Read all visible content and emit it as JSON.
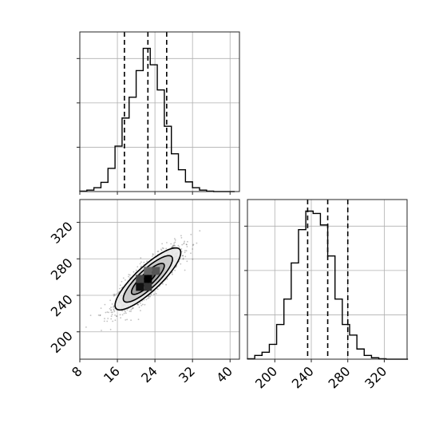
{
  "chart_data": [
    {
      "type": "histogram",
      "panel": "top-left",
      "variable_index": 0,
      "x_range": [
        8,
        42
      ],
      "x_ticks": [
        8,
        16,
        24,
        32,
        40
      ],
      "tick_labels_shown": false,
      "bin_edges": [
        8,
        9.5,
        11,
        12.5,
        14,
        15.5,
        17,
        18.5,
        20,
        21.5,
        23,
        24.5,
        26,
        27.5,
        29,
        30.5,
        32,
        33.5,
        35,
        36.5,
        38,
        39.5,
        41
      ],
      "counts": [
        1,
        3,
        8,
        19,
        48,
        94,
        152,
        195,
        250,
        296,
        262,
        210,
        135,
        78,
        45,
        20,
        8,
        3,
        1,
        0,
        0,
        0
      ],
      "y_range": [
        0,
        330
      ],
      "quantiles": [
        17.5,
        22.5,
        26.5
      ],
      "grid": true
    },
    {
      "type": "histogram",
      "panel": "bottom-right",
      "variable_index": 1,
      "x_range": [
        170,
        345
      ],
      "x_ticks": [
        200,
        240,
        280,
        320
      ],
      "tick_labels": [
        "200",
        "240",
        "280",
        "320"
      ],
      "bin_edges": [
        170,
        178,
        186,
        194,
        202,
        210,
        218,
        226,
        234,
        242,
        250,
        258,
        266,
        274,
        282,
        290,
        298,
        306,
        314,
        322,
        330,
        338,
        346
      ],
      "counts": [
        1,
        8,
        15,
        32,
        75,
        130,
        208,
        280,
        320,
        315,
        290,
        223,
        130,
        75,
        52,
        22,
        8,
        3,
        1,
        0,
        0,
        0
      ],
      "y_range": [
        0,
        345
      ],
      "quantiles": [
        236,
        258,
        280
      ],
      "grid": true
    },
    {
      "type": "scatter-density",
      "panel": "bottom-left",
      "x_range": [
        8,
        42
      ],
      "y_range": [
        170,
        345
      ],
      "x_ticks": [
        8,
        16,
        24,
        32,
        40
      ],
      "x_tick_labels": [
        "8",
        "16",
        "24",
        "32",
        "40"
      ],
      "y_ticks": [
        200,
        240,
        280,
        320
      ],
      "y_tick_labels": [
        "200",
        "240",
        "280",
        "320"
      ],
      "center": [
        22.5,
        258
      ],
      "std": [
        3.5,
        17
      ],
      "correlation": 0.85,
      "sample_points": 1400,
      "contour_levels_sigma": [
        0.5,
        1.0,
        1.5,
        2.0
      ],
      "density_colors": {
        "outer": "#e9e9e9",
        "mid": "#9a9a9a",
        "inner": "#4b4b4b",
        "peak": "#000000"
      },
      "grid": true
    }
  ],
  "colors": {
    "line": "#000000",
    "grid": "#b0b0b0",
    "frame": "#262626",
    "points": "#4d4d4d"
  }
}
